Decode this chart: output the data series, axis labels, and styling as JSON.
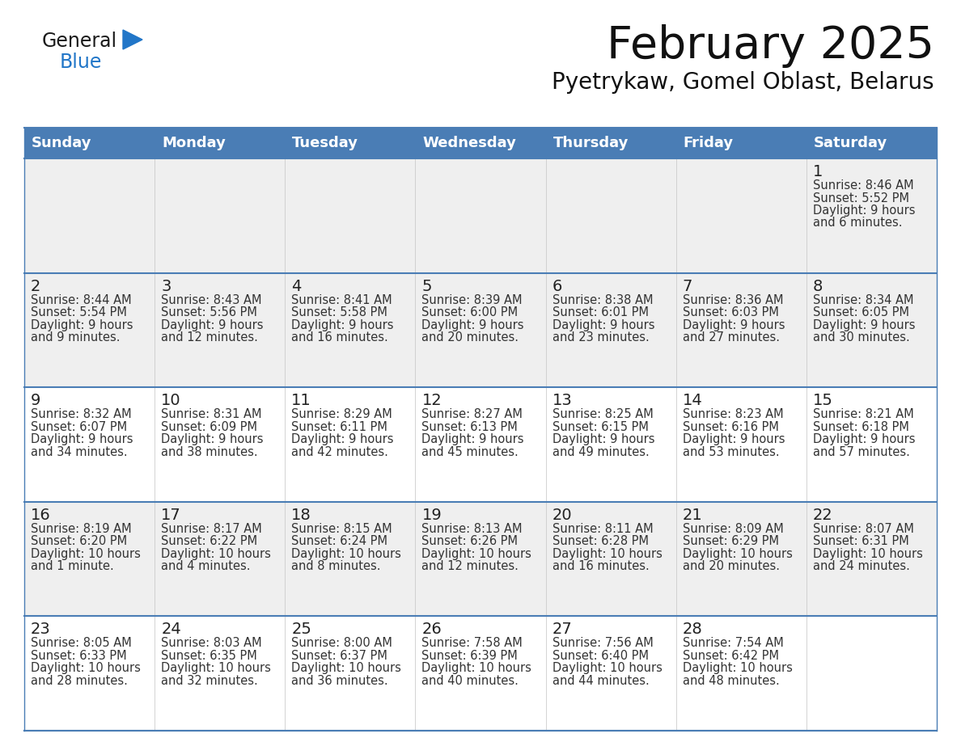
{
  "title": "February 2025",
  "subtitle": "Pyetrykaw, Gomel Oblast, Belarus",
  "header_bg": "#4a7db5",
  "header_text": "#ffffff",
  "row_bg_light": "#efefef",
  "row_bg_white": "#ffffff",
  "cell_border_color": "#4a7db5",
  "day_headers": [
    "Sunday",
    "Monday",
    "Tuesday",
    "Wednesday",
    "Thursday",
    "Friday",
    "Saturday"
  ],
  "days": [
    {
      "day": 1,
      "col": 6,
      "row": 0,
      "sunrise": "8:46 AM",
      "sunset": "5:52 PM",
      "daylight": "9 hours",
      "daylight2": "and 6 minutes."
    },
    {
      "day": 2,
      "col": 0,
      "row": 1,
      "sunrise": "8:44 AM",
      "sunset": "5:54 PM",
      "daylight": "9 hours",
      "daylight2": "and 9 minutes."
    },
    {
      "day": 3,
      "col": 1,
      "row": 1,
      "sunrise": "8:43 AM",
      "sunset": "5:56 PM",
      "daylight": "9 hours",
      "daylight2": "and 12 minutes."
    },
    {
      "day": 4,
      "col": 2,
      "row": 1,
      "sunrise": "8:41 AM",
      "sunset": "5:58 PM",
      "daylight": "9 hours",
      "daylight2": "and 16 minutes."
    },
    {
      "day": 5,
      "col": 3,
      "row": 1,
      "sunrise": "8:39 AM",
      "sunset": "6:00 PM",
      "daylight": "9 hours",
      "daylight2": "and 20 minutes."
    },
    {
      "day": 6,
      "col": 4,
      "row": 1,
      "sunrise": "8:38 AM",
      "sunset": "6:01 PM",
      "daylight": "9 hours",
      "daylight2": "and 23 minutes."
    },
    {
      "day": 7,
      "col": 5,
      "row": 1,
      "sunrise": "8:36 AM",
      "sunset": "6:03 PM",
      "daylight": "9 hours",
      "daylight2": "and 27 minutes."
    },
    {
      "day": 8,
      "col": 6,
      "row": 1,
      "sunrise": "8:34 AM",
      "sunset": "6:05 PM",
      "daylight": "9 hours",
      "daylight2": "and 30 minutes."
    },
    {
      "day": 9,
      "col": 0,
      "row": 2,
      "sunrise": "8:32 AM",
      "sunset": "6:07 PM",
      "daylight": "9 hours",
      "daylight2": "and 34 minutes."
    },
    {
      "day": 10,
      "col": 1,
      "row": 2,
      "sunrise": "8:31 AM",
      "sunset": "6:09 PM",
      "daylight": "9 hours",
      "daylight2": "and 38 minutes."
    },
    {
      "day": 11,
      "col": 2,
      "row": 2,
      "sunrise": "8:29 AM",
      "sunset": "6:11 PM",
      "daylight": "9 hours",
      "daylight2": "and 42 minutes."
    },
    {
      "day": 12,
      "col": 3,
      "row": 2,
      "sunrise": "8:27 AM",
      "sunset": "6:13 PM",
      "daylight": "9 hours",
      "daylight2": "and 45 minutes."
    },
    {
      "day": 13,
      "col": 4,
      "row": 2,
      "sunrise": "8:25 AM",
      "sunset": "6:15 PM",
      "daylight": "9 hours",
      "daylight2": "and 49 minutes."
    },
    {
      "day": 14,
      "col": 5,
      "row": 2,
      "sunrise": "8:23 AM",
      "sunset": "6:16 PM",
      "daylight": "9 hours",
      "daylight2": "and 53 minutes."
    },
    {
      "day": 15,
      "col": 6,
      "row": 2,
      "sunrise": "8:21 AM",
      "sunset": "6:18 PM",
      "daylight": "9 hours",
      "daylight2": "and 57 minutes."
    },
    {
      "day": 16,
      "col": 0,
      "row": 3,
      "sunrise": "8:19 AM",
      "sunset": "6:20 PM",
      "daylight": "10 hours",
      "daylight2": "and 1 minute."
    },
    {
      "day": 17,
      "col": 1,
      "row": 3,
      "sunrise": "8:17 AM",
      "sunset": "6:22 PM",
      "daylight": "10 hours",
      "daylight2": "and 4 minutes."
    },
    {
      "day": 18,
      "col": 2,
      "row": 3,
      "sunrise": "8:15 AM",
      "sunset": "6:24 PM",
      "daylight": "10 hours",
      "daylight2": "and 8 minutes."
    },
    {
      "day": 19,
      "col": 3,
      "row": 3,
      "sunrise": "8:13 AM",
      "sunset": "6:26 PM",
      "daylight": "10 hours",
      "daylight2": "and 12 minutes."
    },
    {
      "day": 20,
      "col": 4,
      "row": 3,
      "sunrise": "8:11 AM",
      "sunset": "6:28 PM",
      "daylight": "10 hours",
      "daylight2": "and 16 minutes."
    },
    {
      "day": 21,
      "col": 5,
      "row": 3,
      "sunrise": "8:09 AM",
      "sunset": "6:29 PM",
      "daylight": "10 hours",
      "daylight2": "and 20 minutes."
    },
    {
      "day": 22,
      "col": 6,
      "row": 3,
      "sunrise": "8:07 AM",
      "sunset": "6:31 PM",
      "daylight": "10 hours",
      "daylight2": "and 24 minutes."
    },
    {
      "day": 23,
      "col": 0,
      "row": 4,
      "sunrise": "8:05 AM",
      "sunset": "6:33 PM",
      "daylight": "10 hours",
      "daylight2": "and 28 minutes."
    },
    {
      "day": 24,
      "col": 1,
      "row": 4,
      "sunrise": "8:03 AM",
      "sunset": "6:35 PM",
      "daylight": "10 hours",
      "daylight2": "and 32 minutes."
    },
    {
      "day": 25,
      "col": 2,
      "row": 4,
      "sunrise": "8:00 AM",
      "sunset": "6:37 PM",
      "daylight": "10 hours",
      "daylight2": "and 36 minutes."
    },
    {
      "day": 26,
      "col": 3,
      "row": 4,
      "sunrise": "7:58 AM",
      "sunset": "6:39 PM",
      "daylight": "10 hours",
      "daylight2": "and 40 minutes."
    },
    {
      "day": 27,
      "col": 4,
      "row": 4,
      "sunrise": "7:56 AM",
      "sunset": "6:40 PM",
      "daylight": "10 hours",
      "daylight2": "and 44 minutes."
    },
    {
      "day": 28,
      "col": 5,
      "row": 4,
      "sunrise": "7:54 AM",
      "sunset": "6:42 PM",
      "daylight": "10 hours",
      "daylight2": "and 48 minutes."
    }
  ],
  "logo_text1": "General",
  "logo_text2": "Blue",
  "logo_color1": "#1a1a1a",
  "logo_color2": "#2176c8",
  "logo_triangle_color": "#2176c8",
  "title_fontsize": 40,
  "subtitle_fontsize": 20,
  "header_fontsize": 13,
  "day_num_fontsize": 14,
  "info_fontsize": 10.5
}
